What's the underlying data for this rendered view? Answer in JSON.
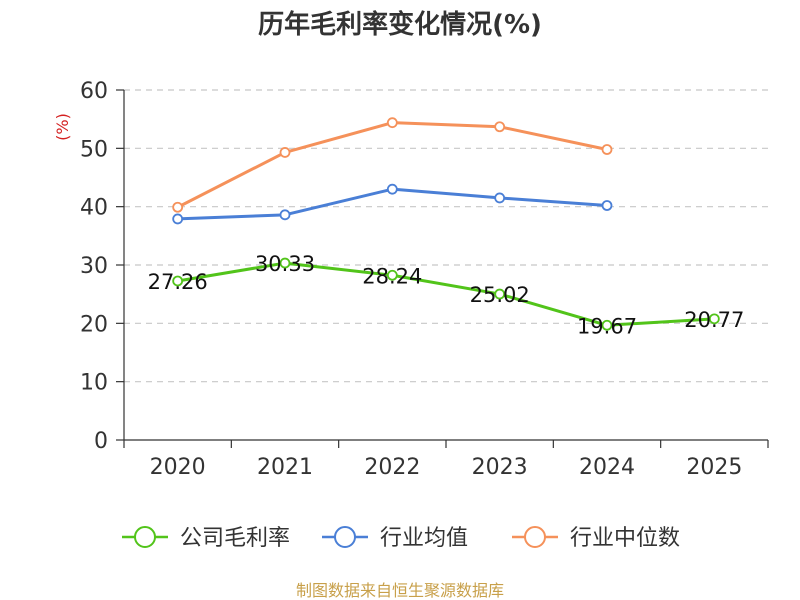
{
  "chart_data": {
    "type": "line",
    "title": "历年毛利率变化情况(%)",
    "ylabel": "(%)",
    "xlabel": "",
    "categories": [
      "2020",
      "2021",
      "2022",
      "2023",
      "2024",
      "2025"
    ],
    "ylim": [
      0,
      60
    ],
    "yticks": [
      0,
      10,
      20,
      30,
      40,
      50,
      60
    ],
    "grid": true,
    "legend_position": "bottom",
    "series": [
      {
        "name": "公司毛利率",
        "color": "#52c41a",
        "values": [
          27.26,
          30.33,
          28.24,
          25.02,
          19.67,
          20.77
        ],
        "labels": [
          "27.26",
          "30.33",
          "28.24",
          "25.02",
          "19.67",
          "20.77"
        ]
      },
      {
        "name": "行业均值",
        "color": "#4a7fd6",
        "values": [
          37.9,
          38.6,
          43.0,
          41.5,
          40.2,
          null
        ]
      },
      {
        "name": "行业中位数",
        "color": "#f5915a",
        "values": [
          39.9,
          49.3,
          54.4,
          53.7,
          49.8,
          null
        ]
      }
    ]
  },
  "footer": {
    "source": "制图数据来自恒生聚源数据库",
    "source_color": "#c8a04a"
  },
  "colors": {
    "axis": "#333333",
    "grid": "#c8c8c8",
    "ylabel": "#d42020"
  }
}
